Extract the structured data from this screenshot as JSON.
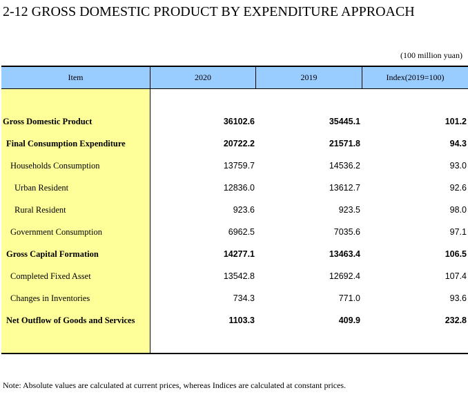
{
  "title": "2-12  GROSS DOMESTIC PRODUCT BY EXPENDITURE APPROACH",
  "unit": "(100 million yuan)",
  "columns": [
    "Item",
    "2020",
    "2019",
    "Index(2019=100)"
  ],
  "rows": [
    {
      "item": "Gross Domestic Product",
      "v2020": "36102.6",
      "v2019": "35445.1",
      "index": "101.2",
      "bold": true,
      "indent": 0
    },
    {
      "item": "Final Consumption Expenditure",
      "v2020": "20722.2",
      "v2019": "21571.8",
      "index": "94.3",
      "bold": true,
      "indent": 1
    },
    {
      "item": "Households Consumption",
      "v2020": "13759.7",
      "v2019": "14536.2",
      "index": "93.0",
      "bold": false,
      "indent": 2
    },
    {
      "item": "Urban Resident",
      "v2020": "12836.0",
      "v2019": "13612.7",
      "index": "92.6",
      "bold": false,
      "indent": 3
    },
    {
      "item": "Rural Resident",
      "v2020": "923.6",
      "v2019": "923.5",
      "index": "98.0",
      "bold": false,
      "indent": 3
    },
    {
      "item": "Government Consumption",
      "v2020": "6962.5",
      "v2019": "7035.6",
      "index": "97.1",
      "bold": false,
      "indent": 2
    },
    {
      "item": "Gross Capital Formation",
      "v2020": "14277.1",
      "v2019": "13463.4",
      "index": "106.5",
      "bold": true,
      "indent": 1
    },
    {
      "item": "Completed Fixed Asset",
      "v2020": "13542.8",
      "v2019": "12692.4",
      "index": "107.4",
      "bold": false,
      "indent": 2
    },
    {
      "item": "Changes in Inventories",
      "v2020": "734.3",
      "v2019": "771.0",
      "index": "93.6",
      "bold": false,
      "indent": 2
    },
    {
      "item": "Net Outflow of Goods and Services",
      "v2020": "1103.3",
      "v2019": "409.9",
      "index": "232.8",
      "bold": true,
      "indent": 1
    }
  ],
  "note": "Note: Absolute values are calculated at current prices, whereas Indices are calculated at constant prices.",
  "colors": {
    "header_bg": "#99ccff",
    "item_bg": "#ffff99"
  }
}
